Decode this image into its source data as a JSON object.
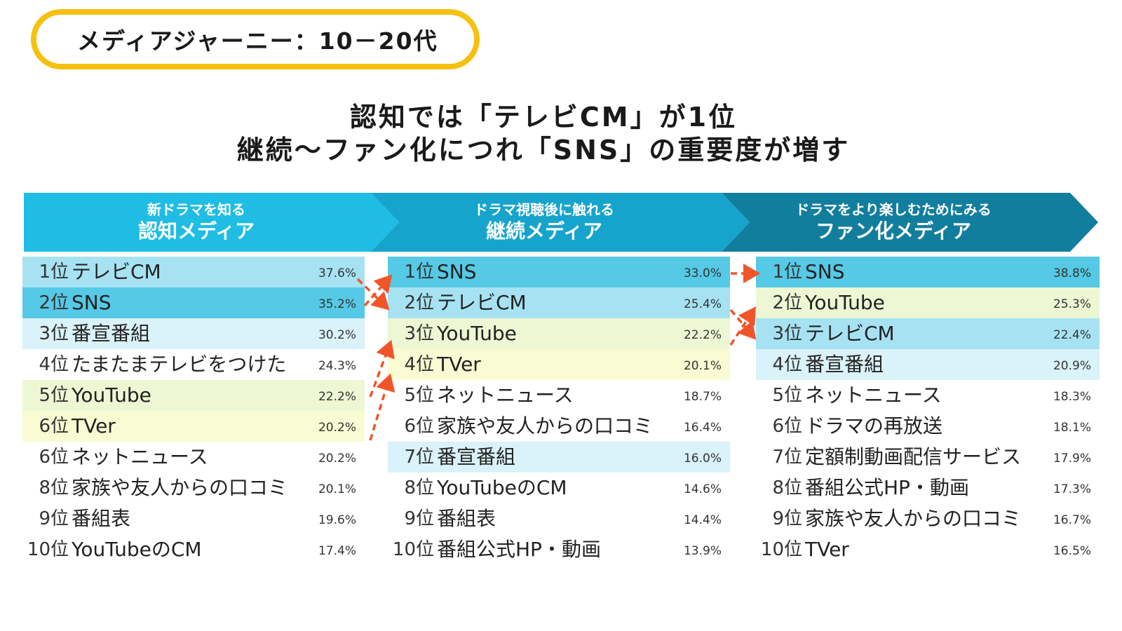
{
  "title": "メディアジャーニー：10－20代",
  "headline": {
    "line1": "認知では「テレビCM」が1位",
    "line2": "継続～ファン化につれ「SNS」の重要度が増す"
  },
  "columns": [
    {
      "sub": "新ドラマを知る",
      "main": "認知メディア",
      "items": [
        {
          "rank": "1位",
          "label": "テレビCM",
          "pct": "37.6%",
          "hl": "sky"
        },
        {
          "rank": "2位",
          "label": "SNS",
          "pct": "35.2%",
          "hl": "cyan"
        },
        {
          "rank": "3位",
          "label": "番宣番組",
          "pct": "30.2%",
          "hl": "pale"
        },
        {
          "rank": "4位",
          "label": "たまたまテレビをつけた",
          "pct": "24.3%",
          "hl": ""
        },
        {
          "rank": "5位",
          "label": "YouTube",
          "pct": "22.2%",
          "hl": "lime"
        },
        {
          "rank": "6位",
          "label": "TVer",
          "pct": "20.2%",
          "hl": "yellow"
        },
        {
          "rank": "6位",
          "label": "ネットニュース",
          "pct": "20.2%",
          "hl": ""
        },
        {
          "rank": "8位",
          "label": "家族や友人からの口コミ",
          "pct": "20.1%",
          "hl": ""
        },
        {
          "rank": "9位",
          "label": "番組表",
          "pct": "19.6%",
          "hl": ""
        },
        {
          "rank": "10位",
          "label": "YouTubeのCM",
          "pct": "17.4%",
          "hl": ""
        }
      ]
    },
    {
      "sub": "ドラマ視聴後に触れる",
      "main": "継続メディア",
      "items": [
        {
          "rank": "1位",
          "label": "SNS",
          "pct": "33.0%",
          "hl": "cyan"
        },
        {
          "rank": "2位",
          "label": "テレビCM",
          "pct": "25.4%",
          "hl": "sky"
        },
        {
          "rank": "3位",
          "label": "YouTube",
          "pct": "22.2%",
          "hl": "lime"
        },
        {
          "rank": "4位",
          "label": "TVer",
          "pct": "20.1%",
          "hl": "yellow"
        },
        {
          "rank": "5位",
          "label": "ネットニュース",
          "pct": "18.7%",
          "hl": ""
        },
        {
          "rank": "6位",
          "label": "家族や友人からの口コミ",
          "pct": "16.4%",
          "hl": ""
        },
        {
          "rank": "7位",
          "label": "番宣番組",
          "pct": "16.0%",
          "hl": "pale"
        },
        {
          "rank": "8位",
          "label": "YouTubeのCM",
          "pct": "14.6%",
          "hl": ""
        },
        {
          "rank": "9位",
          "label": "番組表",
          "pct": "14.4%",
          "hl": ""
        },
        {
          "rank": "10位",
          "label": "番組公式HP・動画",
          "pct": "13.9%",
          "hl": ""
        }
      ]
    },
    {
      "sub": "ドラマをより楽しむためにみる",
      "main": "ファン化メディア",
      "items": [
        {
          "rank": "1位",
          "label": "SNS",
          "pct": "38.8%",
          "hl": "cyan"
        },
        {
          "rank": "2位",
          "label": "YouTube",
          "pct": "25.3%",
          "hl": "lime"
        },
        {
          "rank": "3位",
          "label": "テレビCM",
          "pct": "22.4%",
          "hl": "sky"
        },
        {
          "rank": "4位",
          "label": "番宣番組",
          "pct": "20.9%",
          "hl": "pale"
        },
        {
          "rank": "5位",
          "label": "ネットニュース",
          "pct": "18.3%",
          "hl": ""
        },
        {
          "rank": "6位",
          "label": "ドラマの再放送",
          "pct": "18.1%",
          "hl": ""
        },
        {
          "rank": "7位",
          "label": "定額制動画配信サービス",
          "pct": "17.9%",
          "hl": ""
        },
        {
          "rank": "8位",
          "label": "番組公式HP・動画",
          "pct": "17.3%",
          "hl": ""
        },
        {
          "rank": "9位",
          "label": "家族や友人からの口コミ",
          "pct": "16.7%",
          "hl": ""
        },
        {
          "rank": "10位",
          "label": "TVer",
          "pct": "16.5%",
          "hl": ""
        }
      ]
    }
  ],
  "colors": {
    "pill_border": "#f5c010",
    "banner_1": "#1fbde3",
    "banner_2": "#16a4cc",
    "banner_3": "#127e9e",
    "arrow": "#f0552a",
    "hl_sky": "#a7e2f2",
    "hl_cyan": "#55c9e5",
    "hl_pale": "#daf2f9",
    "hl_lime": "#eef7d4",
    "hl_yellow": "#f9fbd3"
  }
}
